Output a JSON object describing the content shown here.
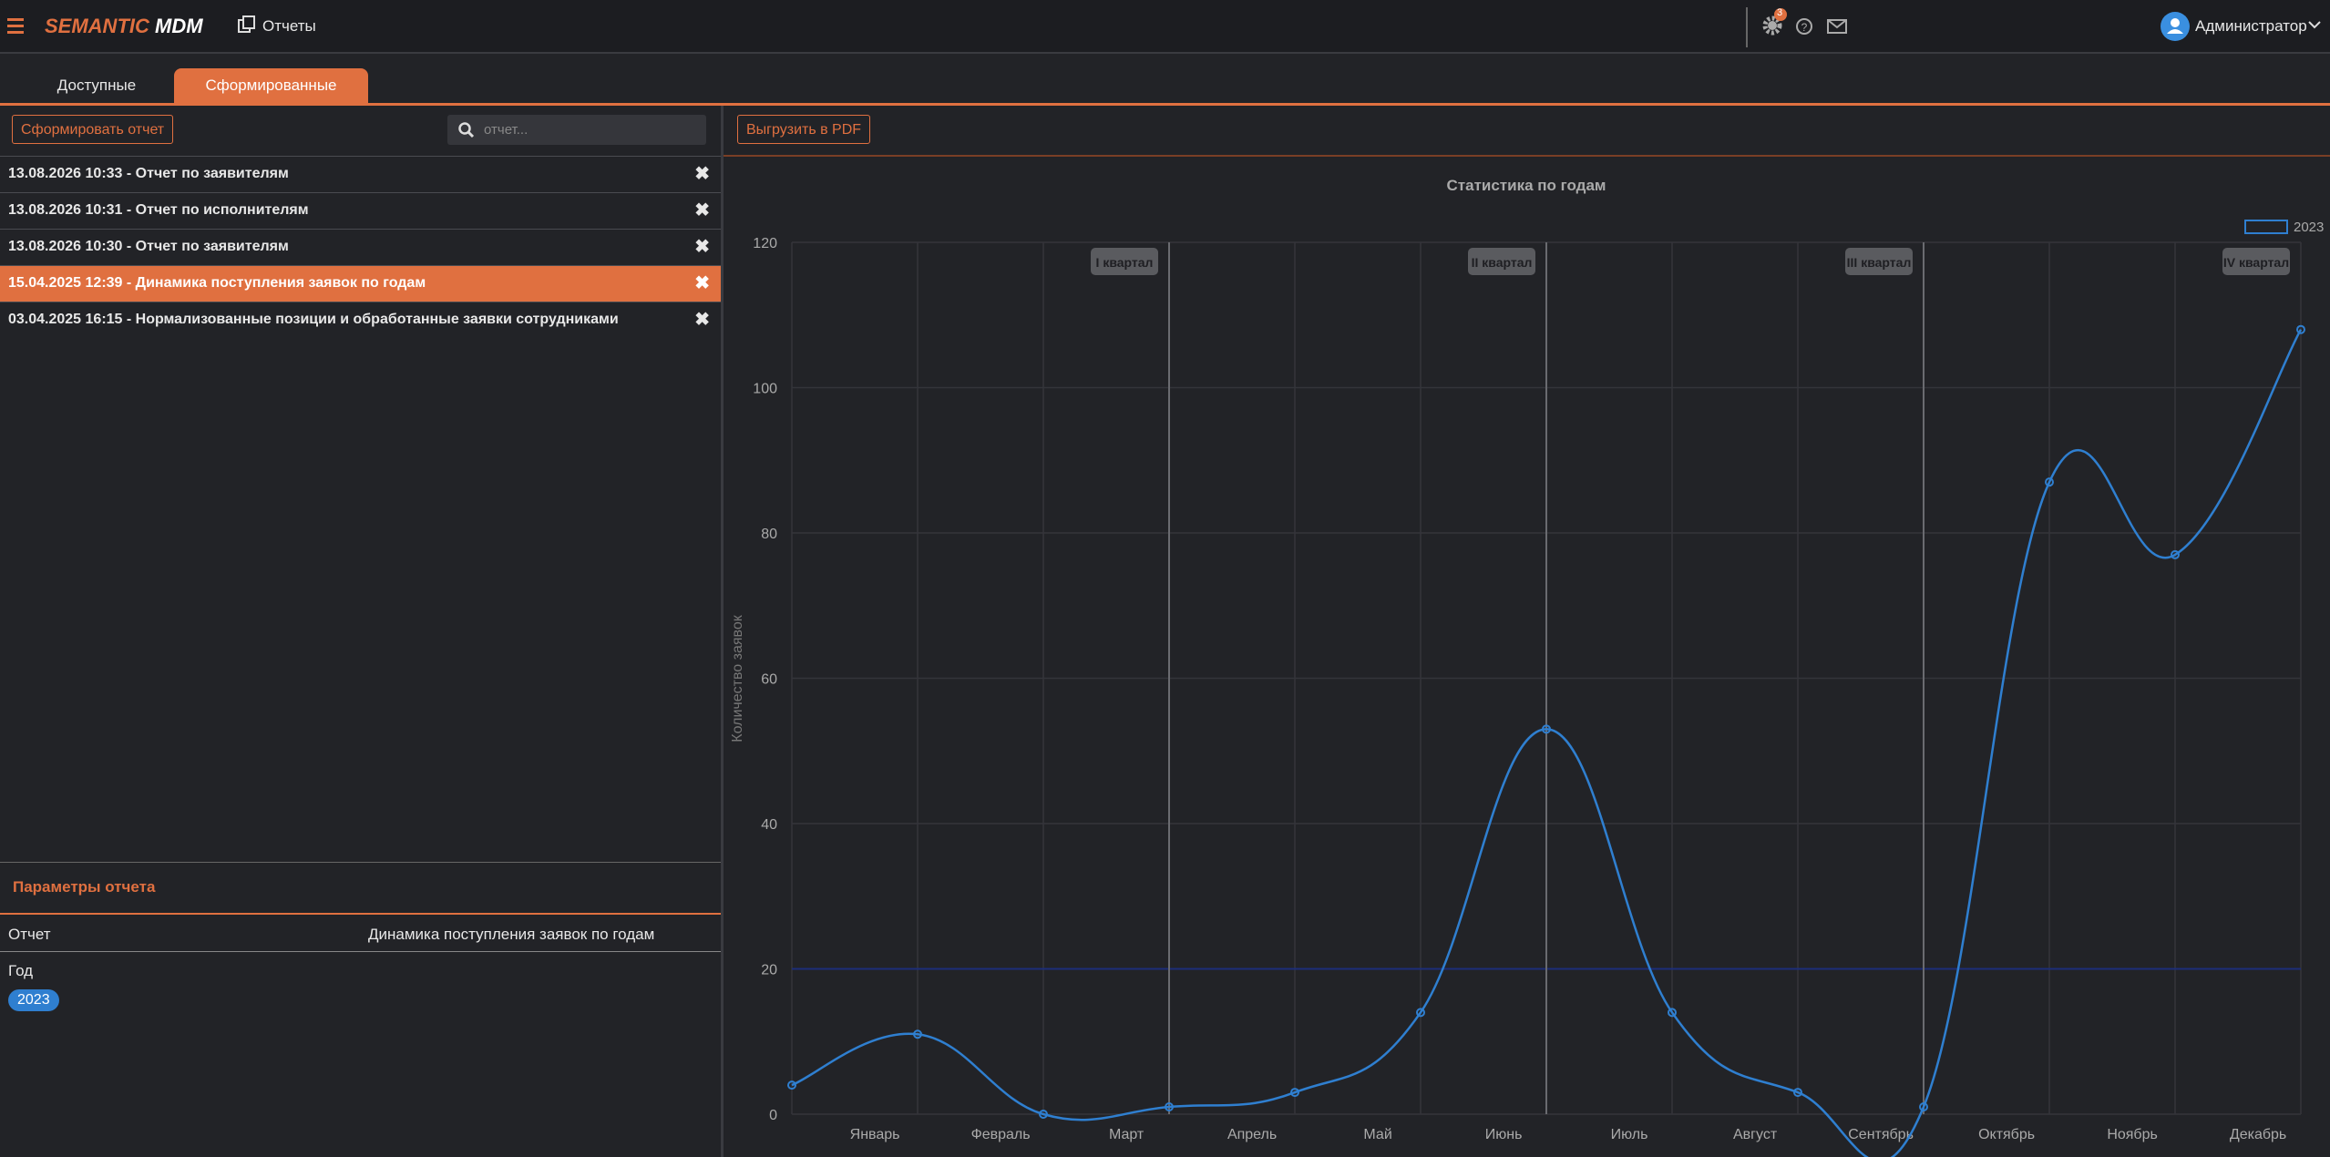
{
  "header": {
    "logo_1": "SEMANTIC",
    "logo_2": "MDM",
    "section": "Отчеты",
    "badge": "3",
    "user": "Администратор"
  },
  "tabs": [
    "Доступные",
    "Сформированные"
  ],
  "toolbar": {
    "create": "Сформировать отчет",
    "search_placeholder": "отчет...",
    "export": "Выгрузить в PDF"
  },
  "reports": [
    "13.08.2026 10:33 - Отчет по заявителям",
    "13.08.2026 10:31 - Отчет по исполнителям",
    "13.08.2026 10:30 - Отчет по заявителям",
    "15.04.2025 12:39 - Динамика поступления заявок по годам",
    "03.04.2025 16:15 - Нормализованные позиции и обработанные заявки сотрудниками"
  ],
  "params": {
    "title": "Параметры отчета",
    "report_label": "Отчет",
    "report_value": "Динамика поступления заявок по годам",
    "year_label": "Год",
    "year": "2023"
  },
  "chart_data": {
    "type": "line",
    "title": "Статистика по годам",
    "y_label": "Количество заявок",
    "categories": [
      "Январь",
      "Февраль",
      "Март",
      "Апрель",
      "Май",
      "Июнь",
      "Июль",
      "Август",
      "Сентябрь",
      "Октябрь",
      "Ноябрь",
      "Декабрь",
      null
    ],
    "series": [
      {
        "name": "2023",
        "color": "#2f7fd0",
        "values": [
          4,
          11,
          0,
          1,
          3,
          14,
          53,
          14,
          3,
          1,
          87,
          77,
          108
        ]
      }
    ],
    "ylim": [
      0,
      120
    ],
    "yticks": [
      0,
      20,
      40,
      60,
      80,
      100,
      120
    ],
    "grid": true,
    "reference_line": 20,
    "annotations": [
      "I квартал",
      "II квартал",
      "III квартал",
      "IV квартал"
    ]
  }
}
